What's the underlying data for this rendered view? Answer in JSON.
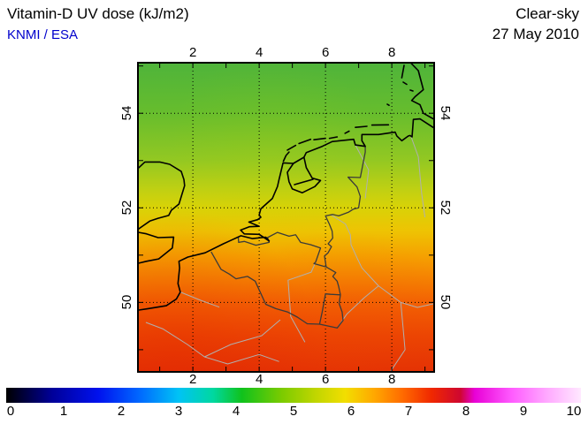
{
  "header": {
    "title": "Vitamin-D UV dose (kJ/m2)",
    "source": "KNMI / ESA",
    "condition": "Clear-sky",
    "date": "27 May 2010"
  },
  "colors": {
    "source_text": "#0000cc",
    "frame": "#000000",
    "coastline": "#000000",
    "country_border": "#3a3a3a",
    "river": "#b0b0b0",
    "grid": "#000000"
  },
  "chart_data": {
    "type": "heatmap",
    "title": "Vitamin-D UV dose (kJ/m2)",
    "subtitle": "Clear-sky 27 May 2010",
    "provider": "KNMI / ESA",
    "units": "kJ/m2",
    "region": "Benelux / North Sea (Netherlands, Belgium, W Germany, N France, SE England)",
    "extent": {
      "lon_min": 0.37,
      "lon_max": 9.25,
      "lat_min": 48.55,
      "lat_max": 55.05
    },
    "lon_ticks": [
      2,
      4,
      6,
      8
    ],
    "lat_ticks": [
      54,
      52,
      50
    ],
    "grid": "dotted",
    "field_description": "Clear-sky vitamin-D UV dose increasing smoothly from ~4.8 kJ/m2 in the north (green) to ~7.3 kJ/m2 in the south (red); variation mainly with latitude",
    "map_gradient": [
      {
        "lat": 55.05,
        "value": 4.8,
        "color": "#4fb43a"
      },
      {
        "lat": 54.0,
        "value": 5.0,
        "color": "#67bd2d"
      },
      {
        "lat": 53.0,
        "value": 5.3,
        "color": "#93c822"
      },
      {
        "lat": 52.4,
        "value": 5.6,
        "color": "#bfd013"
      },
      {
        "lat": 52.0,
        "value": 5.8,
        "color": "#d9d207"
      },
      {
        "lat": 51.5,
        "value": 6.0,
        "color": "#eec303"
      },
      {
        "lat": 51.0,
        "value": 6.3,
        "color": "#f5a201"
      },
      {
        "lat": 50.5,
        "value": 6.6,
        "color": "#f58202"
      },
      {
        "lat": 50.0,
        "value": 6.8,
        "color": "#f36203"
      },
      {
        "lat": 49.3,
        "value": 7.0,
        "color": "#ec4503"
      },
      {
        "lat": 48.55,
        "value": 7.3,
        "color": "#e43104"
      }
    ],
    "colorbar": {
      "min": 0,
      "max": 10,
      "ticks": [
        0,
        1,
        2,
        3,
        4,
        5,
        6,
        7,
        8,
        9,
        10
      ],
      "stops": [
        {
          "value": 0.0,
          "color": "#000000"
        },
        {
          "value": 0.8,
          "color": "#000099"
        },
        {
          "value": 1.6,
          "color": "#0011ee"
        },
        {
          "value": 2.3,
          "color": "#0066ff"
        },
        {
          "value": 3.0,
          "color": "#00c3f5"
        },
        {
          "value": 3.6,
          "color": "#00d8a0"
        },
        {
          "value": 4.1,
          "color": "#10c21c"
        },
        {
          "value": 4.8,
          "color": "#7ccb00"
        },
        {
          "value": 5.4,
          "color": "#c2d600"
        },
        {
          "value": 5.9,
          "color": "#f2de00"
        },
        {
          "value": 6.4,
          "color": "#ffa800"
        },
        {
          "value": 6.9,
          "color": "#ff6a00"
        },
        {
          "value": 7.4,
          "color": "#f02800"
        },
        {
          "value": 7.9,
          "color": "#cf0730"
        },
        {
          "value": 8.15,
          "color": "#e800d6"
        },
        {
          "value": 8.8,
          "color": "#ff5cff"
        },
        {
          "value": 9.4,
          "color": "#ffa8ff"
        },
        {
          "value": 10.0,
          "color": "#ffe8ff"
        }
      ]
    }
  }
}
